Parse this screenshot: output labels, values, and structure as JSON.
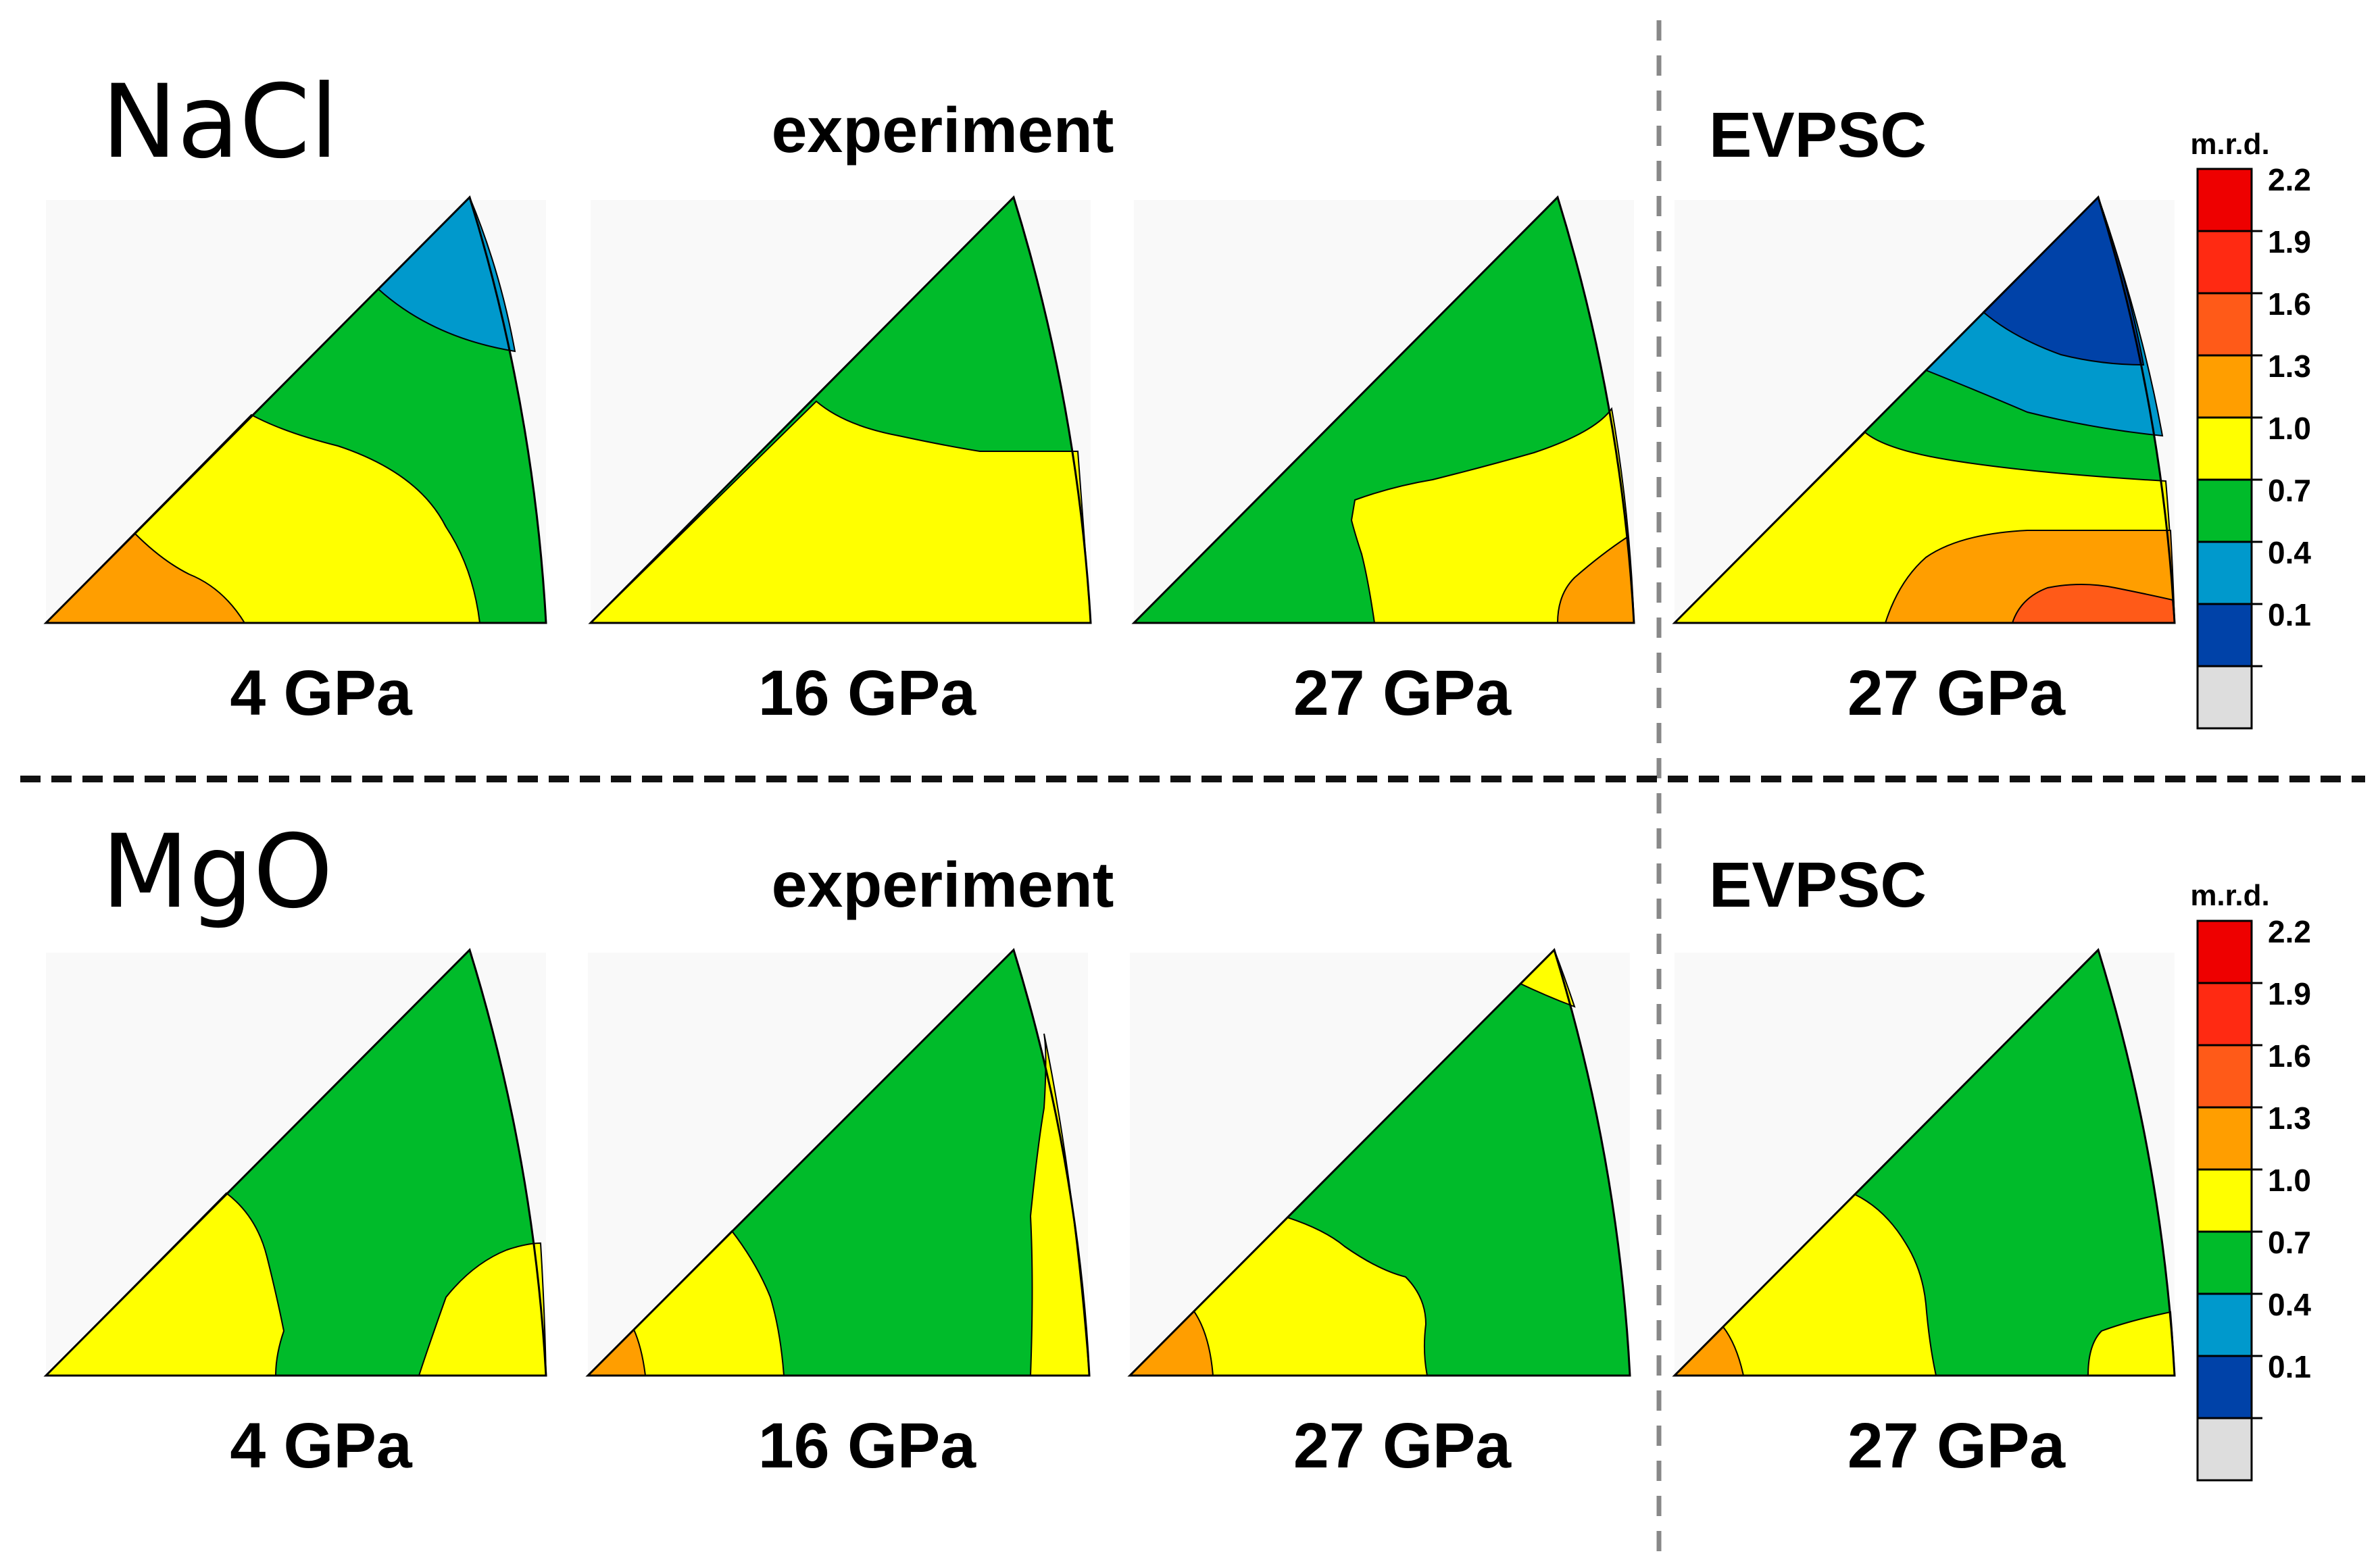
{
  "figure": {
    "rows": [
      {
        "material": "NaCl",
        "experiment_label": "experiment",
        "model_label": "EVPSC",
        "panels": [
          {
            "source": "experiment",
            "pressure": "4 GPa"
          },
          {
            "source": "experiment",
            "pressure": "16 GPa"
          },
          {
            "source": "experiment",
            "pressure": "27 GPa"
          },
          {
            "source": "EVPSC",
            "pressure": "27 GPa"
          }
        ],
        "colorbar": {
          "title": "m.r.d."
        }
      },
      {
        "material": "MgO",
        "experiment_label": "experiment",
        "model_label": "EVPSC",
        "panels": [
          {
            "source": "experiment",
            "pressure": "4 GPa"
          },
          {
            "source": "experiment",
            "pressure": "16 GPa"
          },
          {
            "source": "experiment",
            "pressure": "27 GPa"
          },
          {
            "source": "EVPSC",
            "pressure": "27 GPa"
          }
        ],
        "colorbar": {
          "title": "m.r.d."
        }
      }
    ],
    "colorbar_ticks": [
      "2.2",
      "1.9",
      "1.6",
      "1.3",
      "1.0",
      "0.7",
      "0.4",
      "0.1"
    ],
    "colorbar_colors": [
      "#ee0000",
      "#ff2a12",
      "#ff5a18",
      "#ff9e00",
      "#ffff00",
      "#00bb2a",
      "#0099cc",
      "#0042a8",
      "#dddddd"
    ],
    "colors": {
      "panel_bg": "#f9f9f9",
      "red": "#ee0000",
      "orange_red": "#ff5a18",
      "orange": "#ff9e00",
      "yellow": "#ffff00",
      "green": "#00bb2a",
      "teal": "#0099cc",
      "blue": "#0042a8",
      "divider": "#888888",
      "separator": "#111111"
    }
  }
}
